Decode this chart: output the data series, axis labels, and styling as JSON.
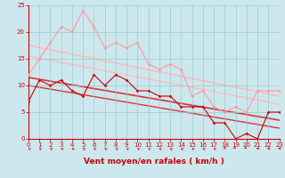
{
  "xlabel": "Vent moyen/en rafales ( km/h )",
  "xlim": [
    0,
    23
  ],
  "ylim": [
    0,
    25
  ],
  "yticks": [
    0,
    5,
    10,
    15,
    20,
    25
  ],
  "xticks": [
    0,
    1,
    2,
    3,
    4,
    5,
    6,
    7,
    8,
    9,
    10,
    11,
    12,
    13,
    14,
    15,
    16,
    17,
    18,
    19,
    20,
    21,
    22,
    23
  ],
  "bg_color": "#cce8ee",
  "grid_color": "#99cccc",
  "line_light": {
    "x": [
      0,
      1,
      2,
      3,
      4,
      5,
      6,
      7,
      8,
      9,
      10,
      11,
      12,
      13,
      14,
      15,
      16,
      17,
      18,
      19,
      20,
      21,
      22,
      23
    ],
    "y": [
      12,
      15,
      18,
      21,
      20,
      24,
      21,
      17,
      18,
      17,
      18,
      14,
      13,
      14,
      13,
      8,
      9,
      6,
      5,
      6,
      5,
      9,
      9,
      9
    ],
    "color": "#ff9999",
    "lw": 0.8,
    "marker": "D",
    "ms": 1.8
  },
  "line_dark": {
    "x": [
      0,
      1,
      2,
      3,
      4,
      5,
      6,
      7,
      8,
      9,
      10,
      11,
      12,
      13,
      14,
      15,
      16,
      17,
      18,
      19,
      20,
      21,
      22,
      23
    ],
    "y": [
      7,
      11,
      10,
      11,
      9,
      8,
      12,
      10,
      12,
      11,
      9,
      9,
      8,
      8,
      6,
      6,
      6,
      3,
      3,
      0,
      1,
      0,
      5,
      5
    ],
    "color": "#cc0000",
    "lw": 0.8,
    "marker": "D",
    "ms": 1.8
  },
  "trend_light_high": {
    "x": [
      0,
      23
    ],
    "y": [
      17.5,
      8.0
    ],
    "color": "#ffbbbb",
    "lw": 1.2
  },
  "trend_light_low": {
    "x": [
      0,
      23
    ],
    "y": [
      15.5,
      6.5
    ],
    "color": "#ffbbbb",
    "lw": 1.0
  },
  "trend_dark_high": {
    "x": [
      0,
      23
    ],
    "y": [
      11.5,
      3.5
    ],
    "color": "#dd3333",
    "lw": 1.2
  },
  "trend_dark_low": {
    "x": [
      0,
      23
    ],
    "y": [
      10.0,
      2.0
    ],
    "color": "#dd3333",
    "lw": 1.0
  },
  "xlabel_color": "#cc0000",
  "xlabel_fontsize": 6.5,
  "tick_fontsize": 5.0,
  "tick_color": "#cc0000",
  "arrow_color": "#cc0000"
}
